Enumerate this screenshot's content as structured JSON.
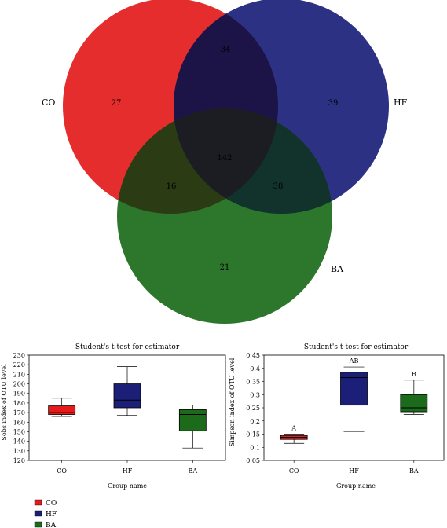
{
  "chart_data": [
    {
      "type": "venn",
      "sets": [
        {
          "name": "CO",
          "color": "#e41b1b"
        },
        {
          "name": "HF",
          "color": "#1b1f78"
        },
        {
          "name": "BA",
          "color": "#1b6b1b"
        }
      ],
      "regions": {
        "CO": "27",
        "HF": "39",
        "BA": "21",
        "CO_HF": "34",
        "CO_BA": "16",
        "HF_BA": "38",
        "CO_HF_BA": "142"
      }
    },
    {
      "type": "box",
      "title": "Student's t-test for estimator",
      "xlabel": "Group name",
      "ylabel": "Sobs index of OTU level",
      "ylim": [
        120,
        230
      ],
      "yticks": [
        "120",
        "130",
        "140",
        "150",
        "160",
        "170",
        "180",
        "190",
        "200",
        "210",
        "220",
        "230"
      ],
      "categories": [
        "CO",
        "HF",
        "BA"
      ],
      "boxes": [
        {
          "min": 166,
          "q1": 168,
          "median": 170,
          "q3": 177,
          "max": 185,
          "letter": ""
        },
        {
          "min": 167,
          "q1": 175,
          "median": 183,
          "q3": 200,
          "max": 218,
          "letter": ""
        },
        {
          "min": 133,
          "q1": 151,
          "median": 168,
          "q3": 173,
          "max": 178,
          "letter": ""
        }
      ]
    },
    {
      "type": "box",
      "title": "Student's t-test for estimator",
      "xlabel": "Group name",
      "ylabel": "Simpson index of OTU level",
      "ylim": [
        0.05,
        0.45
      ],
      "yticks": [
        "0.05",
        "0.1",
        "0.15",
        "0.2",
        "0.25",
        "0.3",
        "0.35",
        "0.4",
        "0.45"
      ],
      "categories": [
        "CO",
        "HF",
        "BA"
      ],
      "boxes": [
        {
          "min": 0.115,
          "q1": 0.13,
          "median": 0.138,
          "q3": 0.145,
          "max": 0.15,
          "letter": "A"
        },
        {
          "min": 0.16,
          "q1": 0.26,
          "median": 0.365,
          "q3": 0.385,
          "max": 0.405,
          "letter": "AB"
        },
        {
          "min": 0.225,
          "q1": 0.235,
          "median": 0.25,
          "q3": 0.3,
          "max": 0.355,
          "letter": "B"
        }
      ]
    }
  ],
  "legend": [
    {
      "label": "CO",
      "color": "#e41b1b"
    },
    {
      "label": "HF",
      "color": "#1b1f78"
    },
    {
      "label": "BA",
      "color": "#1b6b1b"
    }
  ]
}
